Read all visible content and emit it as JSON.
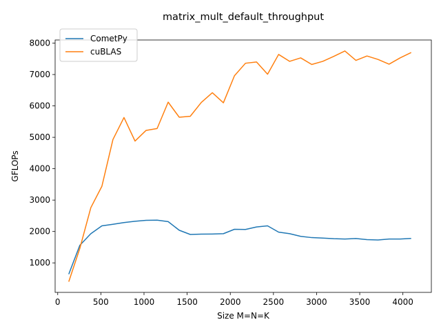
{
  "chart_data": {
    "type": "line",
    "title": "matrix_mult_default_throughput",
    "xlabel": "Size M=N=K",
    "ylabel": "GFLOPs",
    "xlim": [
      -30,
      4330
    ],
    "ylim": [
      60,
      8100
    ],
    "xticks": [
      0,
      500,
      1000,
      1500,
      2000,
      2500,
      3000,
      3500,
      4000
    ],
    "yticks": [
      1000,
      2000,
      3000,
      4000,
      5000,
      6000,
      7000,
      8000
    ],
    "grid": false,
    "legend_position": "top-left",
    "x": [
      128,
      256,
      384,
      512,
      640,
      768,
      896,
      1024,
      1152,
      1280,
      1408,
      1536,
      1664,
      1792,
      1920,
      2048,
      2176,
      2304,
      2432,
      2560,
      2688,
      2816,
      2944,
      3072,
      3200,
      3328,
      3456,
      3584,
      3712,
      3840,
      3968,
      4096
    ],
    "series": [
      {
        "name": "CometPy",
        "color": "#1f77b4",
        "values": [
          640,
          1560,
          1930,
          2180,
          2230,
          2285,
          2325,
          2355,
          2360,
          2315,
          2040,
          1905,
          1915,
          1920,
          1930,
          2070,
          2065,
          2145,
          2180,
          1980,
          1930,
          1845,
          1805,
          1790,
          1770,
          1760,
          1775,
          1740,
          1730,
          1760,
          1760,
          1780
        ]
      },
      {
        "name": "cuBLAS",
        "color": "#ff7f0e",
        "values": [
          400,
          1460,
          2760,
          3440,
          4930,
          5630,
          4880,
          5220,
          5280,
          6120,
          5640,
          5670,
          6110,
          6420,
          6100,
          6960,
          7360,
          7400,
          7010,
          7640,
          7420,
          7530,
          7320,
          7420,
          7580,
          7750,
          7450,
          7590,
          7480,
          7330,
          7530,
          7700
        ]
      }
    ]
  }
}
